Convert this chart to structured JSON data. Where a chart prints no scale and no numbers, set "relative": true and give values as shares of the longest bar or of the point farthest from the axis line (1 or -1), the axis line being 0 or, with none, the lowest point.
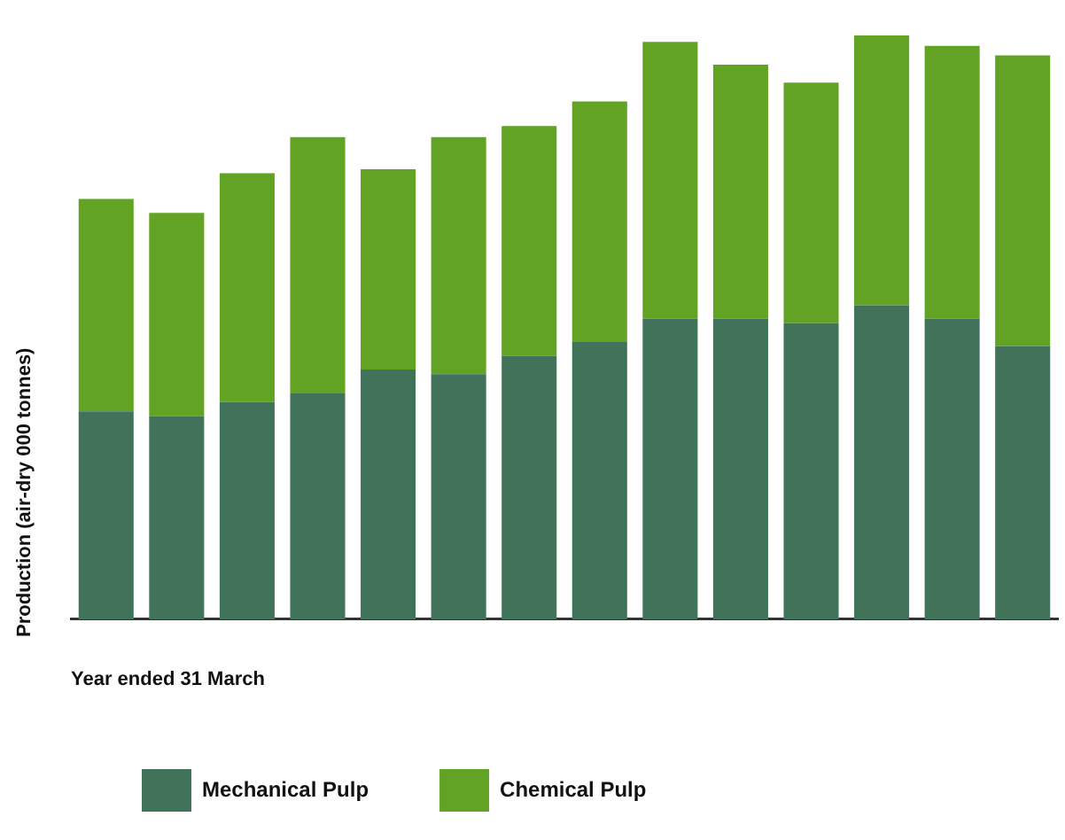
{
  "chart_data": {
    "type": "bar",
    "stacked": true,
    "relative": true,
    "xlabel": "Year ended 31 March",
    "ylabel": "Production (air-dry 000 tonnes)",
    "legend": "bottom",
    "categories": [
      null,
      null,
      null,
      null,
      null,
      null,
      null,
      null,
      null,
      null,
      null,
      null,
      null,
      null
    ],
    "series": [
      {
        "name": "Mechanical Pulp",
        "color": "#40735a",
        "values": [
          0.356,
          0.348,
          0.372,
          0.387,
          0.428,
          0.42,
          0.451,
          0.475,
          0.515,
          0.515,
          0.507,
          0.538,
          0.515,
          0.468
        ]
      },
      {
        "name": "Chemical Pulp",
        "color": "#63a323",
        "values": [
          0.364,
          0.348,
          0.392,
          0.439,
          0.343,
          0.406,
          0.394,
          0.412,
          0.474,
          0.435,
          0.412,
          0.462,
          0.467,
          0.498
        ]
      }
    ]
  }
}
